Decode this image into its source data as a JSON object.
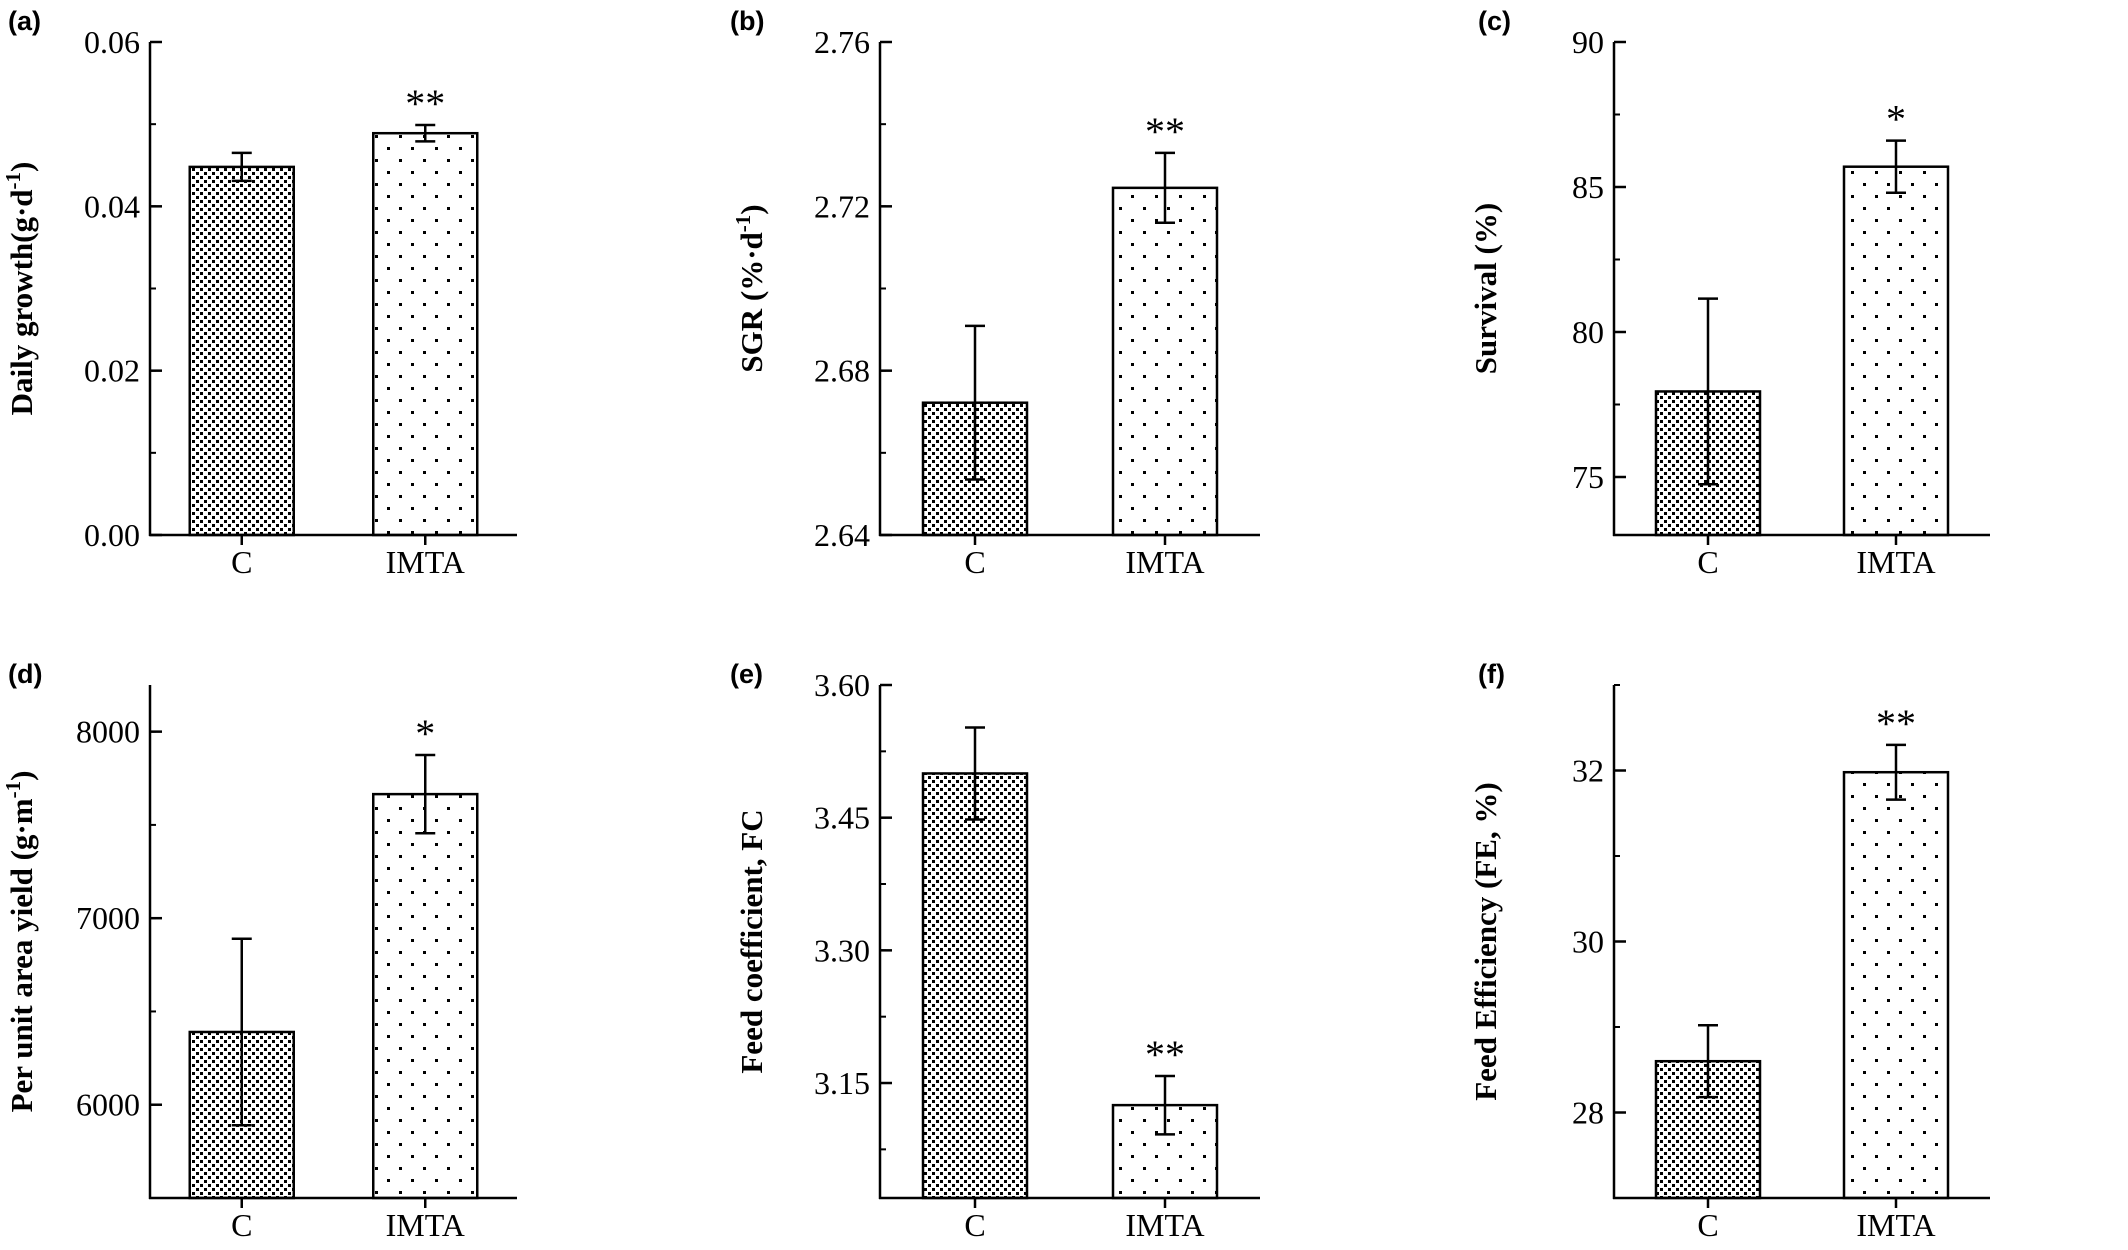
{
  "chart_data": [
    {
      "type": "bar",
      "panel": "(a)",
      "categories": [
        "C",
        "IMTA"
      ],
      "values": [
        0.0448,
        0.0489
      ],
      "errors": [
        0.0017,
        0.001
      ],
      "significance": [
        "",
        "**"
      ],
      "patterns": [
        "dense-dots",
        "sparse-dots"
      ],
      "ylabel": "Daily growth(g·d",
      "ylabel_sup": "-1",
      "ylabel_tail": ")",
      "ylim": [
        0,
        0.06
      ],
      "yticks": [
        0,
        0.02,
        0.04,
        0.06
      ],
      "yticklabels": [
        "0.00",
        "0.02",
        "0.04",
        "0.06"
      ],
      "minor_step": 0.01,
      "grid": false
    },
    {
      "type": "bar",
      "panel": "(b)",
      "categories": [
        "C",
        "IMTA"
      ],
      "values": [
        2.6722,
        2.7245
      ],
      "errors": [
        0.0187,
        0.0085
      ],
      "significance": [
        "",
        "**"
      ],
      "patterns": [
        "dense-dots",
        "sparse-dots"
      ],
      "ylabel": "SGR (%·d",
      "ylabel_sup": "-1",
      "ylabel_tail": ")",
      "ylim": [
        2.64,
        2.76
      ],
      "yticks": [
        2.64,
        2.68,
        2.72,
        2.76
      ],
      "yticklabels": [
        "2.64",
        "2.68",
        "2.72",
        "2.76"
      ],
      "minor_step": 0.02,
      "grid": false
    },
    {
      "type": "bar",
      "panel": "(c)",
      "categories": [
        "C",
        "IMTA"
      ],
      "values": [
        77.95,
        85.7
      ],
      "errors": [
        3.2,
        0.9
      ],
      "significance": [
        "",
        "*"
      ],
      "patterns": [
        "dense-dots",
        "sparse-dots"
      ],
      "ylabel": "Survival (%)",
      "ylabel_sup": "",
      "ylabel_tail": "",
      "ylim": [
        73,
        90
      ],
      "yticks": [
        75,
        80,
        85,
        90
      ],
      "yticklabels": [
        "75",
        "80",
        "85",
        "90"
      ],
      "minor_step": 2.5,
      "grid": false
    },
    {
      "type": "bar",
      "panel": "(d)",
      "categories": [
        "C",
        "IMTA"
      ],
      "values": [
        6390,
        7665
      ],
      "errors": [
        500,
        210
      ],
      "significance": [
        "",
        "*"
      ],
      "patterns": [
        "dense-dots",
        "sparse-dots"
      ],
      "ylabel": "Per unit area yield  (g·m",
      "ylabel_sup": "-1",
      "ylabel_tail": ")",
      "ylim": [
        5500,
        8250
      ],
      "yticks": [
        6000,
        7000,
        8000
      ],
      "yticklabels": [
        "6000",
        "7000",
        "8000"
      ],
      "minor_step": 500,
      "grid": false
    },
    {
      "type": "bar",
      "panel": "(e)",
      "categories": [
        "C",
        "IMTA"
      ],
      "values": [
        3.5,
        3.125
      ],
      "errors": [
        0.052,
        0.033
      ],
      "significance": [
        "",
        "**"
      ],
      "patterns": [
        "dense-dots",
        "sparse-dots"
      ],
      "ylabel": "Feed coefficient, FC",
      "ylabel_sup": "",
      "ylabel_tail": "",
      "ylim": [
        3.02,
        3.6
      ],
      "yticks": [
        3.15,
        3.3,
        3.45,
        3.6
      ],
      "yticklabels": [
        "3.15",
        "3.30",
        "3.45",
        "3.60"
      ],
      "minor_step": 0.075,
      "grid": false
    },
    {
      "type": "bar",
      "panel": "(f)",
      "categories": [
        "C",
        "IMTA"
      ],
      "values": [
        28.6,
        31.98
      ],
      "errors": [
        0.42,
        0.32
      ],
      "significance": [
        "",
        "**"
      ],
      "patterns": [
        "dense-dots",
        "sparse-dots"
      ],
      "ylabel": "Feed Efficiency (FE, %)",
      "ylabel_sup": "",
      "ylabel_tail": "",
      "ylim": [
        27,
        33
      ],
      "yticks": [
        28,
        30,
        32
      ],
      "yticklabels": [
        "28",
        "30",
        "32"
      ],
      "minor_step": 1,
      "grid": false
    }
  ]
}
